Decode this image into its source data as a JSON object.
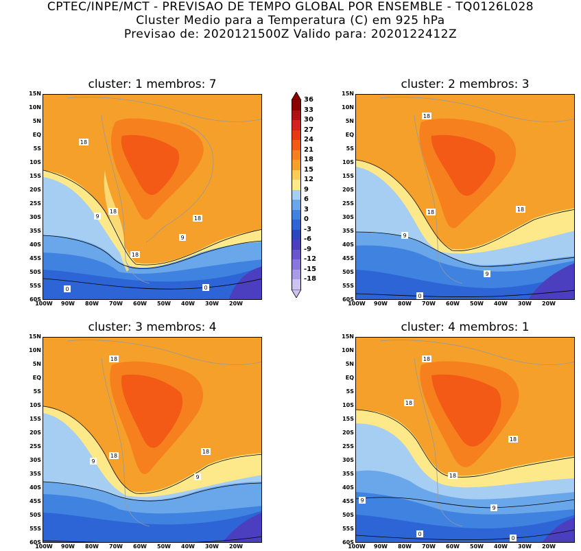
{
  "header": {
    "line1": "CPTEC/INPE/MCT - PREVISAO DE TEMPO GLOBAL POR ENSEMBLE - TQ0126L028",
    "line2": "Cluster Medio para a Temperatura (C) em 925 hPa",
    "line3": "Previsao de: 2020121500Z   Valido para: 2020122412Z"
  },
  "panels": [
    {
      "title": "cluster: 1   membros: 7"
    },
    {
      "title": "cluster: 2   membros: 3"
    },
    {
      "title": "cluster: 3   membros: 4"
    },
    {
      "title": "cluster: 4   membros: 1"
    }
  ],
  "lat_labels": [
    "15N",
    "10N",
    "5N",
    "EQ",
    "5S",
    "10S",
    "15S",
    "20S",
    "25S",
    "30S",
    "35S",
    "40S",
    "45S",
    "50S",
    "55S",
    "60S"
  ],
  "lon_labels": [
    "100W",
    "90W",
    "80W",
    "70W",
    "60W",
    "50W",
    "40W",
    "30W",
    "20W"
  ],
  "colorbar": {
    "labels": [
      "36",
      "33",
      "30",
      "27",
      "24",
      "21",
      "18",
      "15",
      "12",
      "9",
      "6",
      "3",
      "0",
      "-3",
      "-6",
      "-9",
      "-12",
      "-15",
      "-18"
    ],
    "colors": [
      "#8b0000",
      "#b01010",
      "#d62020",
      "#e83a10",
      "#f25a16",
      "#f6801e",
      "#f5a02a",
      "#fbcc5a",
      "#fde88a",
      "#a6cdf2",
      "#6aa7ea",
      "#3f82e0",
      "#2d65d6",
      "#2a47c0",
      "#4b3fc0",
      "#6a55cf",
      "#8a77dc",
      "#aa9be6",
      "#ccc3f0"
    ]
  },
  "contour_labels": [
    "18",
    "9",
    "0"
  ]
}
